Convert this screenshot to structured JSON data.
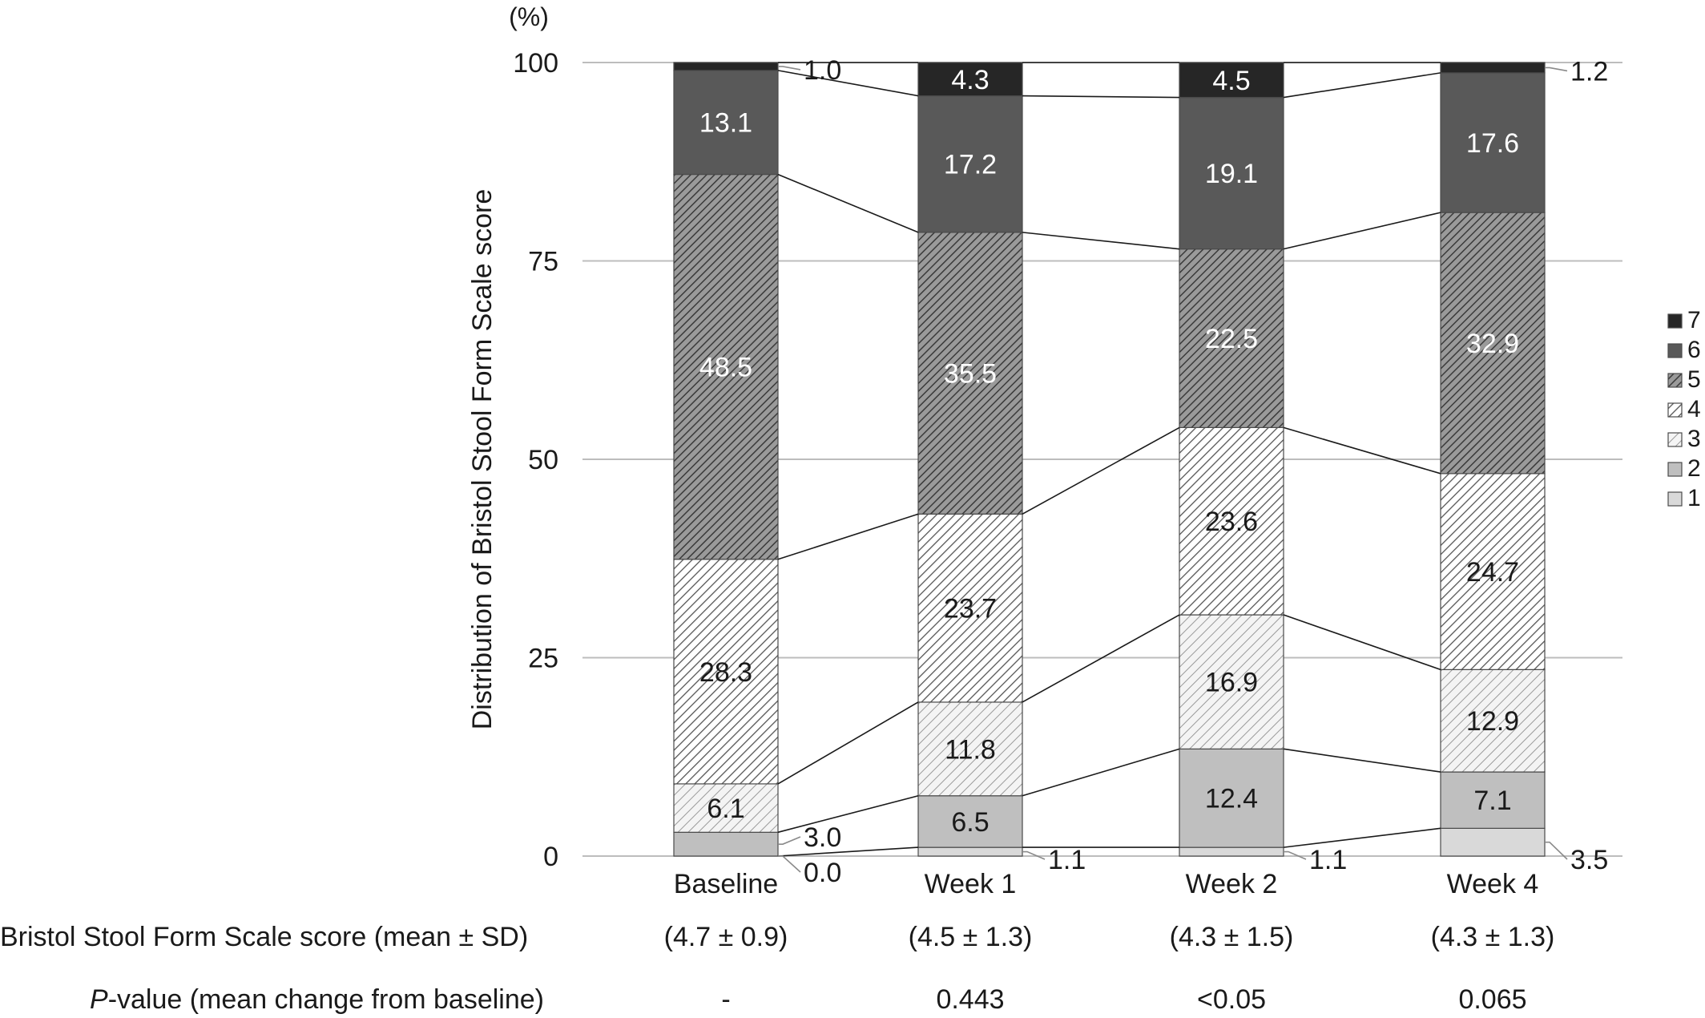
{
  "chart_data": {
    "type": "stacked-bar",
    "unit_label": "(%)",
    "ylabel": "Distribution of Bristol Stool Form Scale score",
    "ylim": [
      0,
      100
    ],
    "yticks": [
      0,
      25,
      50,
      75,
      100
    ],
    "grid": true,
    "legend_position": "right",
    "categories": [
      "Baseline",
      "Week 1",
      "Week 2",
      "Week 4"
    ],
    "series": [
      {
        "name": "1",
        "values": [
          0.0,
          1.1,
          1.1,
          3.5
        ],
        "labels": [
          "0.0",
          "1.1",
          "1.1",
          "3.5"
        ],
        "fill": "#d9d9d9",
        "pattern": "none",
        "text_color": "#1a1a1a"
      },
      {
        "name": "2",
        "values": [
          3.0,
          6.5,
          12.4,
          7.1
        ],
        "labels": [
          "3.0",
          "6.5",
          "12.4",
          "7.1"
        ],
        "fill": "#bfbfbf",
        "pattern": "none",
        "text_color": "#1a1a1a"
      },
      {
        "name": "3",
        "values": [
          6.1,
          11.8,
          16.9,
          12.9
        ],
        "labels": [
          "6.1",
          "11.8",
          "16.9",
          "12.9"
        ],
        "fill": "#f2f2f2",
        "pattern": "light",
        "text_color": "#1a1a1a"
      },
      {
        "name": "4",
        "values": [
          28.3,
          23.7,
          23.6,
          24.7
        ],
        "labels": [
          "28.3",
          "23.7",
          "23.6",
          "24.7"
        ],
        "fill": "#ffffff",
        "pattern": "medium",
        "text_color": "#1a1a1a"
      },
      {
        "name": "5",
        "values": [
          48.5,
          35.5,
          22.5,
          32.9
        ],
        "labels": [
          "48.5",
          "35.5",
          "22.5",
          "32.9"
        ],
        "fill": "#8c8c8c",
        "pattern": "dense",
        "text_color": "#ffffff"
      },
      {
        "name": "6",
        "values": [
          13.1,
          17.2,
          19.1,
          17.6
        ],
        "labels": [
          "13.1",
          "17.2",
          "19.1",
          "17.6"
        ],
        "fill": "#595959",
        "pattern": "none",
        "text_color": "#ffffff"
      },
      {
        "name": "7",
        "values": [
          1.0,
          4.3,
          4.5,
          1.2
        ],
        "labels": [
          "1.0",
          "4.3",
          "4.5",
          "1.2"
        ],
        "fill": "#262626",
        "pattern": "none",
        "text_color": "#ffffff"
      }
    ],
    "mean_row": {
      "label": "Bristol Stool Form Scale score (mean ± SD)",
      "values": [
        "(4.7 ± 0.9)",
        "(4.5 ± 1.3)",
        "(4.3 ± 1.5)",
        "(4.3 ± 1.3)"
      ]
    },
    "pvalue_row": {
      "label_italic": "P",
      "label_rest": "-value (mean change from baseline)",
      "values": [
        "-",
        "0.443",
        "<0.05",
        "0.065"
      ]
    }
  }
}
